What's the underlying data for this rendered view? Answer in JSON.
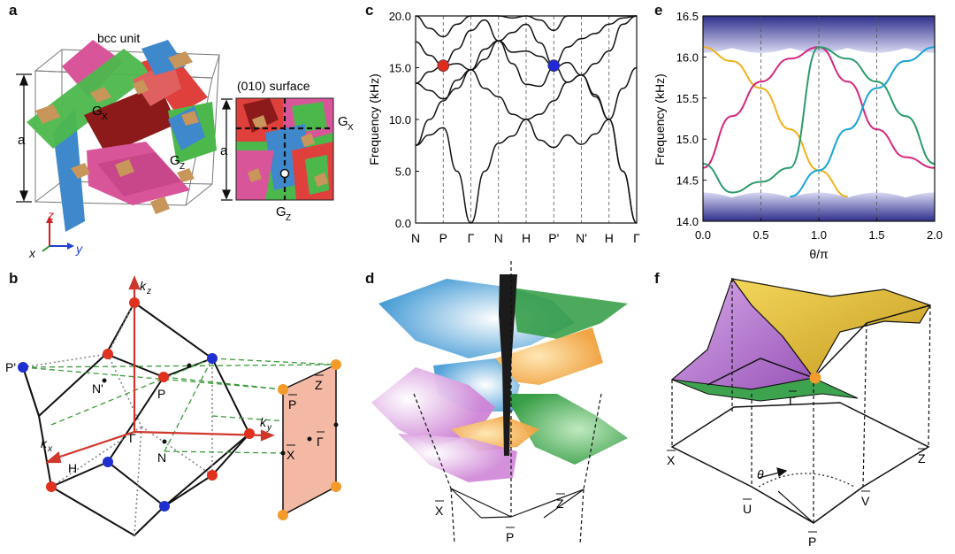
{
  "panel_labels": {
    "a": "a",
    "b": "b",
    "c": "c",
    "d": "d",
    "e": "e",
    "f": "f"
  },
  "panel_a": {
    "title": "bcc unit",
    "surface_title": "(010) surface",
    "lattice_label": "a",
    "gx": "G",
    "gx_sub": "X",
    "gz": "G",
    "gz_sub": "Z",
    "axis_z": "z",
    "axis_y": "y",
    "axis_x": "x",
    "colors": {
      "green": "#4cb84c",
      "pink": "#d9559a",
      "blue": "#3f88cc",
      "red": "#e0403c",
      "darkred": "#8c1a1a",
      "tan": "#c8955a"
    }
  },
  "panel_b": {
    "kz": "k",
    "kz_sub": "z",
    "ky": "k",
    "ky_sub": "y",
    "kx": "k",
    "kx_sub": "x",
    "points": {
      "P_prime": "P'",
      "N_prime": "N'",
      "P": "P",
      "Gamma": "Γ",
      "N": "N",
      "H": "H"
    },
    "surface_points": {
      "P_bar": "P",
      "Z_bar": "Z",
      "Gamma_bar": "Γ",
      "X_bar": "X"
    },
    "colors": {
      "red_ball": "#e0301e",
      "blue_ball": "#1f2fd0",
      "orange_ball": "#f39a2a",
      "surface_fill": "#f3b9a4",
      "axis": "#d0372c",
      "dash": "#3a9a3a"
    }
  },
  "chart_data": [
    {
      "type": "line",
      "panel": "c",
      "title": "",
      "xlabel": "",
      "ylabel": "Frequency (kHz)",
      "ylim": [
        0,
        20
      ],
      "yticks": [
        "0.0",
        "5.0",
        "10.0",
        "15.0",
        "20.0"
      ],
      "x_ticks": [
        "N",
        "P",
        "Γ",
        "N",
        "H",
        "P'",
        "N'",
        "H",
        "Γ"
      ],
      "x_tick_positions": [
        0,
        1,
        2,
        3,
        4,
        5,
        6,
        7,
        8
      ],
      "markers": [
        {
          "x": 1,
          "y": 15.2,
          "color": "#e02a1e"
        },
        {
          "x": 5,
          "y": 15.2,
          "color": "#2028d8"
        }
      ],
      "series": [
        {
          "x": [
            0,
            0.5,
            1,
            1.5,
            2,
            2.5,
            3,
            3.5,
            4,
            4.5,
            5,
            5.5,
            6,
            6.5,
            7,
            7.5,
            8
          ],
          "values": [
            7.5,
            8.5,
            9.2,
            5.0,
            0.0,
            5.0,
            7.7,
            8.4,
            10.0,
            8.0,
            7.3,
            8.5,
            7.6,
            8.6,
            10.0,
            5.0,
            0.0
          ]
        },
        {
          "x": [
            0,
            0.5,
            1,
            1.5,
            2,
            2.5,
            3,
            3.5,
            4,
            4.5,
            5,
            5.5,
            6,
            6.5,
            7,
            7.5,
            8
          ],
          "values": [
            7.5,
            10.0,
            11.8,
            13.8,
            14.8,
            13.0,
            12.2,
            10.5,
            10.0,
            10.5,
            11.8,
            13.6,
            14.3,
            12.2,
            10.0,
            5.0,
            0.0
          ]
        },
        {
          "x": [
            0,
            0.5,
            1,
            1.5,
            2,
            2.5,
            3,
            3.5,
            4,
            4.5,
            5,
            5.5,
            6,
            6.5,
            7,
            7.5,
            8
          ],
          "values": [
            13.5,
            14.6,
            15.2,
            15.4,
            14.8,
            16.8,
            17.6,
            16.5,
            16.6,
            16.1,
            15.2,
            13.6,
            14.3,
            15.4,
            16.6,
            19.2,
            20.0
          ]
        },
        {
          "x": [
            0,
            0.5,
            1,
            1.5,
            2,
            2.5,
            3,
            3.5,
            4,
            4.5,
            5,
            5.5,
            6,
            6.5,
            7,
            7.5,
            8
          ],
          "values": [
            17.5,
            16.2,
            15.2,
            16.8,
            18.6,
            19.6,
            17.6,
            18.4,
            19.2,
            17.4,
            15.2,
            17.0,
            17.8,
            18.3,
            19.2,
            19.8,
            20.0
          ]
        },
        {
          "x": [
            0,
            0.5,
            1,
            1.5,
            2,
            2.5,
            3,
            3.5,
            4,
            4.5,
            5,
            5.5,
            6,
            6.5,
            7,
            7.5,
            8
          ],
          "values": [
            20.0,
            18.8,
            18.0,
            19.2,
            20.0,
            20.0,
            20.0,
            19.8,
            20.0,
            19.6,
            18.6,
            20.0,
            20.0,
            20.0,
            20.0,
            20.0,
            20.0
          ]
        },
        {
          "x": [
            0,
            0.5,
            1,
            1.5,
            2,
            2.5,
            3,
            3.5,
            4,
            4.5,
            5,
            5.5,
            6,
            6.5,
            7,
            7.5,
            8
          ],
          "values": [
            13.5,
            12.8,
            12.0,
            13.0,
            14.8,
            15.8,
            17.6,
            15.4,
            13.4,
            13.2,
            15.0,
            15.5,
            14.3,
            12.4,
            10.0,
            13.0,
            15.0
          ]
        }
      ]
    },
    {
      "type": "line",
      "panel": "e",
      "title": "",
      "xlabel": "θ/π",
      "ylabel": "Frequency (kHz)",
      "xlim": [
        0,
        2
      ],
      "ylim": [
        14,
        16.5
      ],
      "xticks": [
        "0.0",
        "0.5",
        "1.0",
        "1.5",
        "2.0"
      ],
      "yticks": [
        "14.0",
        "14.5",
        "15.0",
        "15.5",
        "16.0",
        "16.5"
      ],
      "series": [
        {
          "color": "#f2b21f",
          "x": [
            0,
            0.25,
            0.5,
            0.75,
            1.0,
            1.25
          ],
          "values": [
            16.12,
            15.95,
            15.62,
            15.12,
            14.62,
            14.3
          ]
        },
        {
          "color": "#d6257c",
          "x": [
            0,
            0.25,
            0.5,
            0.75,
            1.0,
            1.25,
            1.5,
            1.75,
            2.0
          ],
          "values": [
            14.65,
            15.28,
            15.7,
            15.98,
            16.12,
            15.7,
            15.12,
            14.78,
            14.65
          ]
        },
        {
          "color": "#2a9b6a",
          "x": [
            0,
            0.25,
            0.5,
            0.75,
            1.0,
            1.25,
            1.5,
            1.75,
            2.0
          ],
          "values": [
            14.7,
            14.35,
            14.48,
            14.65,
            16.12,
            15.98,
            15.7,
            15.28,
            14.7
          ]
        },
        {
          "color": "#18a5d6",
          "x": [
            0.75,
            1.0,
            1.25,
            1.5,
            1.75,
            2.0
          ],
          "values": [
            14.3,
            14.62,
            15.12,
            15.62,
            15.95,
            16.12
          ]
        }
      ],
      "bulk_bands": [
        {
          "from": 16.05,
          "to": 16.5
        },
        {
          "from": 14.0,
          "to": 14.35
        }
      ],
      "vlines": [
        0.5,
        1.0,
        1.5
      ]
    }
  ],
  "panel_d": {
    "X_bar": "X",
    "Z_bar": "Z",
    "P_bar": "P",
    "colors": {
      "blue": "#4aa3d8",
      "green": "#3da34e",
      "orange": "#f0a640",
      "pink": "#d58ad8",
      "black": "#1b1b1b"
    }
  },
  "panel_f": {
    "X_bar": "X",
    "Z_bar": "Z",
    "Gamma_bar": "Γ",
    "U_bar": "U",
    "V_bar": "V",
    "P_bar": "P",
    "theta": "θ",
    "colors": {
      "yellow": "#e6c33e",
      "violet": "#b27bd0",
      "green": "#3da34e",
      "orange": "#f39a2a"
    }
  }
}
